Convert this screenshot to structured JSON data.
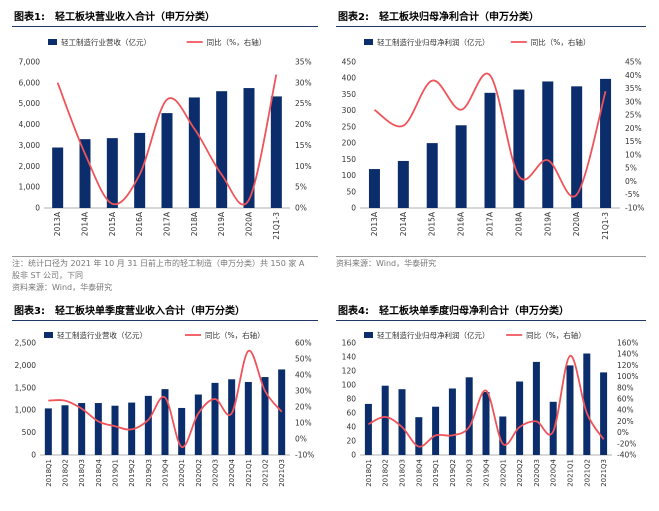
{
  "charts": [
    {
      "label": "图表1:",
      "title": "轻工板块营业收入合计（申万分类）",
      "bar_legend": "轻工制造行业营收（亿元）",
      "line_legend": "同比（%，右轴）",
      "notes": [
        "注：统计口径为 2021 年 10 月 31 日前上市的轻工制造（申万分类）共 150 家 A",
        "股非 ST 公司，下同",
        "资料来源：Wind，华泰研究"
      ]
    },
    {
      "label": "图表2:",
      "title": "轻工板块归母净利合计（申万分类）",
      "bar_legend": "轻工制造行业归母净利润（亿元）",
      "line_legend": "同比（%，右轴）",
      "notes": [
        "资料来源：Wind，华泰研究"
      ]
    },
    {
      "label": "图表3:",
      "title": "轻工板块单季度营业收入合计（申万分类）",
      "bar_legend": "轻工制造行业营收（亿元）",
      "line_legend": "同比（%，右轴）",
      "notes": []
    },
    {
      "label": "图表4:",
      "title": "轻工板块单季度归母净利合计（申万分类）",
      "bar_legend": "轻工制造行业归母净利润（亿元）",
      "line_legend": "同比（%，右轴）",
      "notes": []
    }
  ],
  "colors": {
    "bar": "#0b2d6b",
    "line": "#f0545b",
    "title_rule": "#1f3864"
  },
  "chart_data": [
    {
      "type": "bar",
      "categories": [
        "2013A",
        "2014A",
        "2015A",
        "2016A",
        "2017A",
        "2018A",
        "2019A",
        "2020A",
        "21Q1-3"
      ],
      "series": [
        {
          "name": "轻工制造行业营收（亿元）",
          "axis": "left",
          "type": "bar",
          "values": [
            2900,
            3300,
            3350,
            3600,
            4550,
            5300,
            5600,
            5750,
            5350
          ]
        },
        {
          "name": "同比（%，右轴）",
          "axis": "right",
          "type": "line",
          "values": [
            30,
            13,
            1,
            8,
            26,
            19,
            8,
            2,
            32
          ]
        }
      ],
      "y_left": {
        "min": 0,
        "max": 7000,
        "step": 1000,
        "ticks": [
          "0",
          "1,000",
          "2,000",
          "3,000",
          "4,000",
          "5,000",
          "6,000",
          "7,000"
        ]
      },
      "y_right": {
        "min": 0,
        "max": 35,
        "step": 5,
        "ticks": [
          "0%",
          "5%",
          "10%",
          "15%",
          "20%",
          "25%",
          "30%",
          "35%"
        ]
      }
    },
    {
      "type": "bar",
      "categories": [
        "2013A",
        "2014A",
        "2015A",
        "2016A",
        "2017A",
        "2018A",
        "2019A",
        "2020A",
        "21Q1-3"
      ],
      "series": [
        {
          "name": "轻工制造行业归母净利润（亿元）",
          "axis": "left",
          "type": "bar",
          "values": [
            120,
            145,
            200,
            255,
            355,
            365,
            390,
            375,
            398
          ]
        },
        {
          "name": "同比（%，右轴）",
          "axis": "right",
          "type": "line",
          "values": [
            27,
            21,
            38,
            27,
            40,
            2,
            8,
            -5,
            34
          ]
        }
      ],
      "y_left": {
        "min": 0,
        "max": 450,
        "step": 50,
        "ticks": [
          "0",
          "50",
          "100",
          "150",
          "200",
          "250",
          "300",
          "350",
          "400",
          "450"
        ]
      },
      "y_right": {
        "min": -10,
        "max": 45,
        "step": 5,
        "ticks": [
          "-10%",
          "-5%",
          "0%",
          "5%",
          "10%",
          "15%",
          "20%",
          "25%",
          "30%",
          "35%",
          "40%",
          "45%"
        ]
      }
    },
    {
      "type": "bar",
      "categories": [
        "2018Q1",
        "2018Q2",
        "2018Q3",
        "2018Q4",
        "2019Q1",
        "2019Q2",
        "2019Q3",
        "2019Q4",
        "2020Q1",
        "2020Q2",
        "2020Q3",
        "2020Q4",
        "2021Q1",
        "2021Q2",
        "2021Q3"
      ],
      "series": [
        {
          "name": "轻工制造行业营收（亿元）",
          "axis": "left",
          "type": "bar",
          "values": [
            1040,
            1110,
            1160,
            1160,
            1100,
            1170,
            1320,
            1470,
            1050,
            1350,
            1610,
            1690,
            1630,
            1740,
            1910
          ]
        },
        {
          "name": "同比（%，右轴）",
          "axis": "right",
          "type": "line",
          "values": [
            24,
            24,
            19,
            11,
            8,
            6,
            12,
            26,
            -5,
            16,
            25,
            16,
            55,
            30,
            17
          ]
        }
      ],
      "y_left": {
        "min": 0,
        "max": 2500,
        "step": 500,
        "ticks": [
          "0",
          "500",
          "1,000",
          "1,500",
          "2,000",
          "2,500"
        ]
      },
      "y_right": {
        "min": -10,
        "max": 60,
        "step": 10,
        "ticks": [
          "-10%",
          "0%",
          "10%",
          "20%",
          "30%",
          "40%",
          "50%",
          "60%"
        ]
      }
    },
    {
      "type": "bar",
      "categories": [
        "2018Q1",
        "2018Q2",
        "2018Q3",
        "2018Q4",
        "2019Q1",
        "2019Q2",
        "2019Q3",
        "2019Q4",
        "2020Q1",
        "2020Q2",
        "2020Q3",
        "2020Q4",
        "2021Q1",
        "2021Q2",
        "2021Q3"
      ],
      "series": [
        {
          "name": "轻工制造行业归母净利润（亿元）",
          "axis": "left",
          "type": "bar",
          "values": [
            73,
            99,
            94,
            54,
            69,
            95,
            111,
            90,
            55,
            105,
            133,
            76,
            128,
            145,
            118
          ]
        },
        {
          "name": "同比（%，右轴）",
          "axis": "right",
          "type": "line",
          "values": [
            15,
            28,
            10,
            -25,
            -5,
            -5,
            10,
            75,
            -20,
            10,
            20,
            2,
            137,
            35,
            -12
          ]
        }
      ],
      "y_left": {
        "min": 0,
        "max": 160,
        "step": 20,
        "ticks": [
          "0",
          "20",
          "40",
          "60",
          "80",
          "100",
          "120",
          "140",
          "160"
        ]
      },
      "y_right": {
        "min": -40,
        "max": 160,
        "step": 20,
        "ticks": [
          "-40%",
          "-20%",
          "0%",
          "20%",
          "40%",
          "60%",
          "80%",
          "100%",
          "120%",
          "140%",
          "160%"
        ]
      }
    }
  ]
}
